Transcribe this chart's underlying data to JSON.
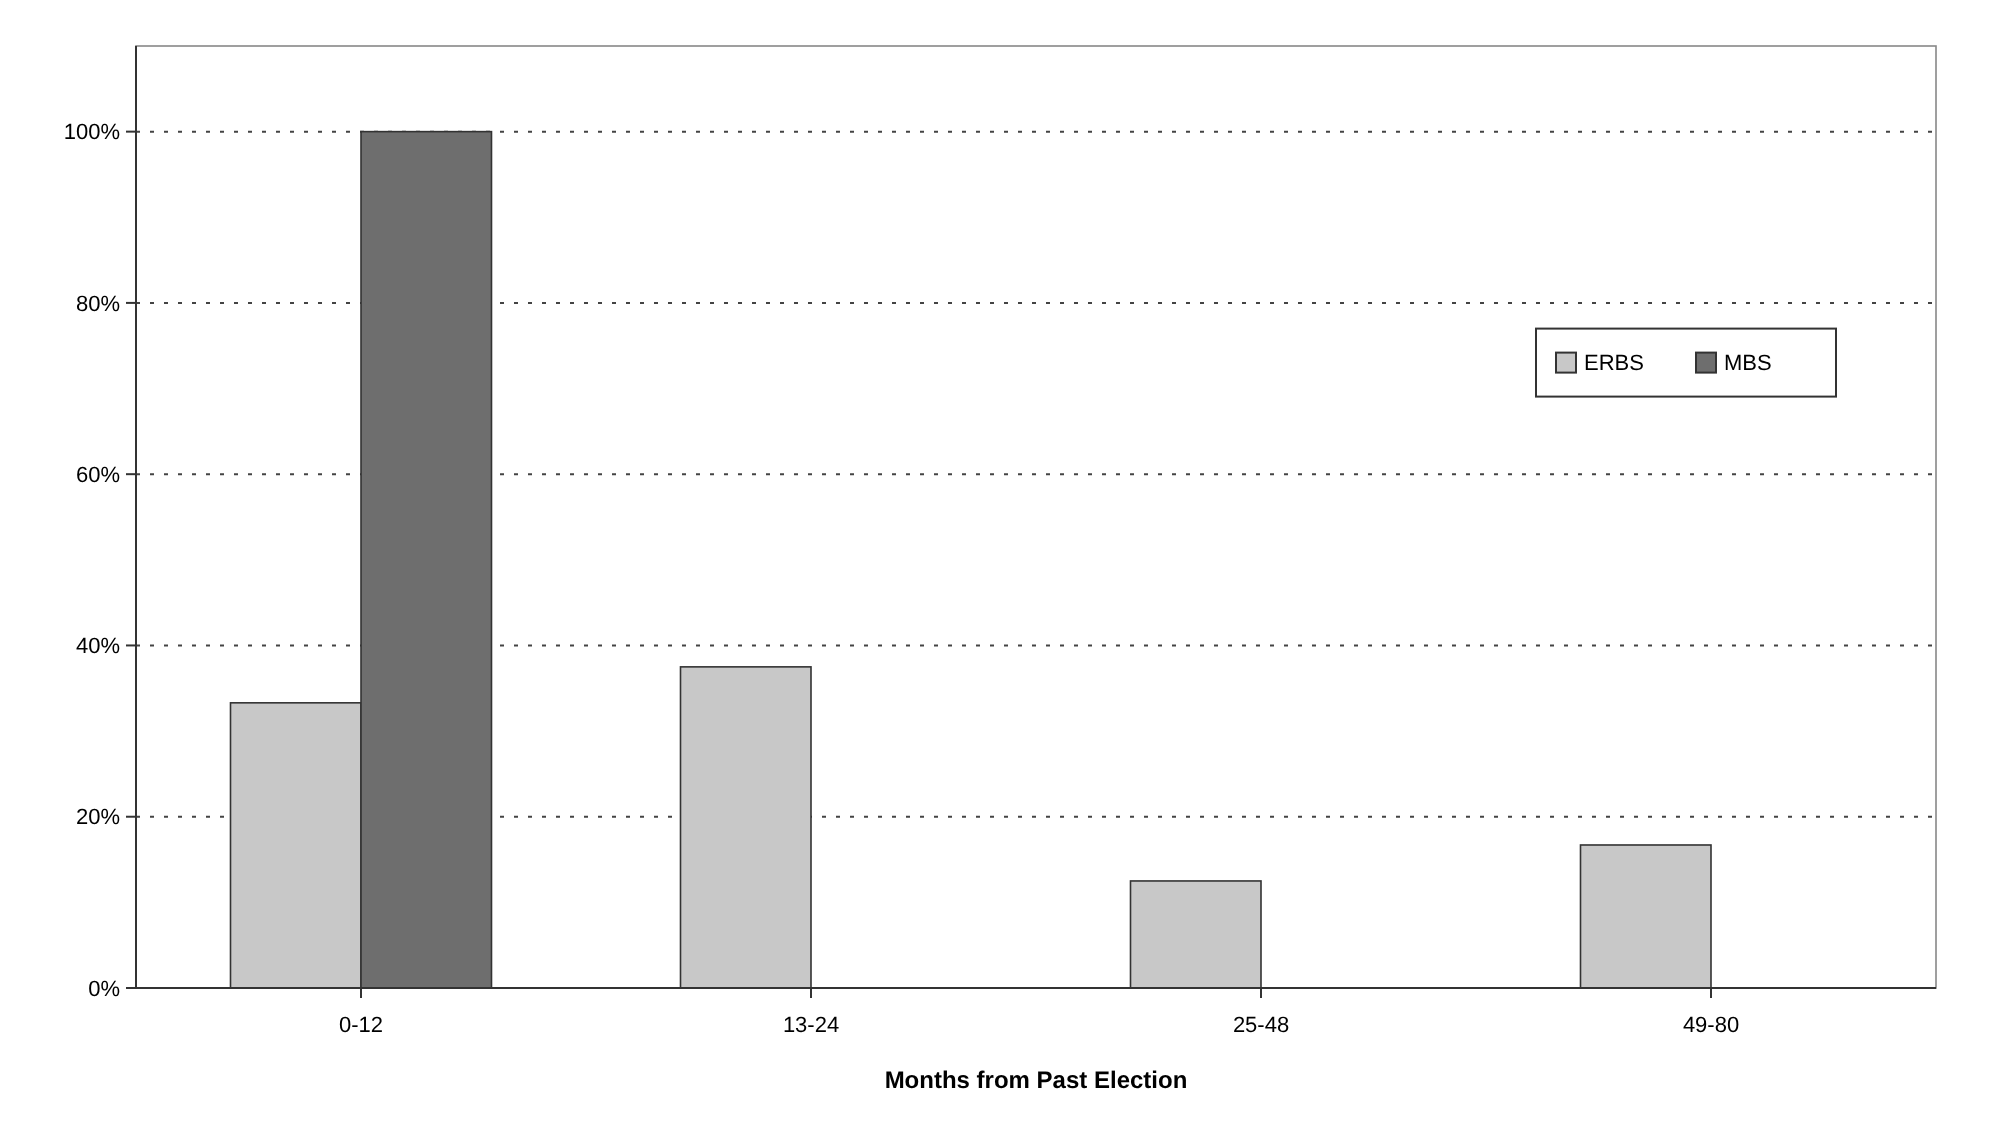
{
  "chart_data": {
    "type": "bar",
    "xlabel": "Months from Past Election",
    "categories": [
      "0-12",
      "13-24",
      "25-48",
      "49-80"
    ],
    "series": [
      {
        "name": "ERBS",
        "color": "#c8c8c8",
        "values": [
          33.3,
          37.5,
          12.5,
          16.7
        ]
      },
      {
        "name": "MBS",
        "color": "#6e6e6e",
        "values": [
          100,
          0,
          0,
          0
        ]
      }
    ],
    "ylim": [
      0,
      110
    ],
    "yticks": [
      {
        "value": 0,
        "label": "0%"
      },
      {
        "value": 20,
        "label": "20%"
      },
      {
        "value": 40,
        "label": "40%"
      },
      {
        "value": 60,
        "label": "60%"
      },
      {
        "value": 80,
        "label": "80%"
      },
      {
        "value": 100,
        "label": "100%"
      }
    ],
    "grid": "y",
    "legend": "right"
  }
}
